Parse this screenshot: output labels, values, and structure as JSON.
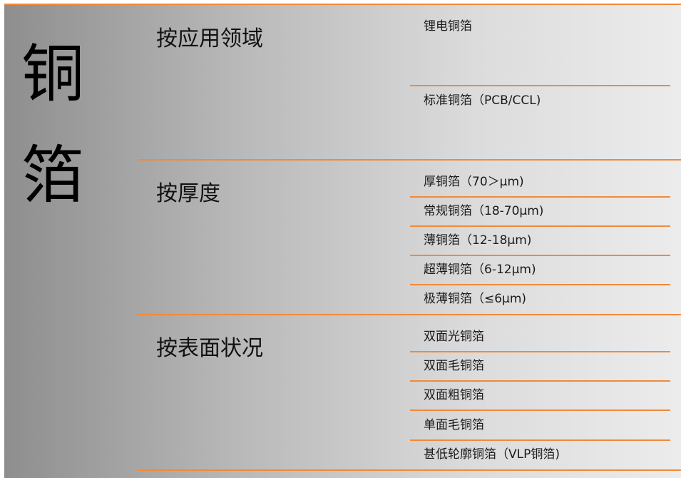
{
  "title_chars": [
    "铜",
    "箔"
  ],
  "accent_color": "#f08a3c",
  "categories": [
    {
      "label": "按应用领域",
      "items": [
        "锂电铜箔",
        "标准铜箔（PCB/CCL)"
      ]
    },
    {
      "label": "按厚度",
      "items": [
        "厚铜箔（70＞μm)",
        "常规铜箔（18-70μm)",
        "薄铜箔（12-18μm)",
        "超薄铜箔（6-12μm)",
        "极薄铜箔（≤6μm)"
      ]
    },
    {
      "label": "按表面状况",
      "items": [
        "双面光铜箔",
        "双面毛铜箔",
        "双面粗铜箔",
        "单面毛铜箔",
        "甚低轮廓铜箔（VLP铜箔)"
      ]
    }
  ]
}
